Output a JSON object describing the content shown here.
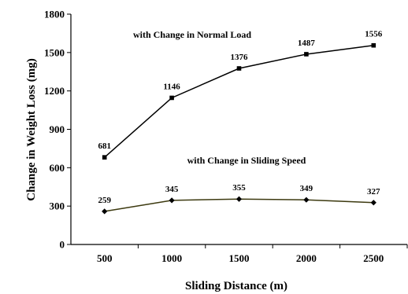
{
  "chart_data": {
    "type": "line",
    "title": "",
    "xlabel": "Sliding Distance (m)",
    "ylabel": "Change in Weight Loss (mg)",
    "x": [
      500,
      1000,
      1500,
      2000,
      2500
    ],
    "x_tick_labels": [
      "500",
      "1000",
      "1500",
      "2000",
      "2500"
    ],
    "ylim": [
      0,
      1800
    ],
    "y_ticks": [
      0,
      300,
      600,
      900,
      1200,
      1500,
      1800
    ],
    "y_tick_labels": [
      "0",
      "300",
      "600",
      "900",
      "1200",
      "1500",
      "1800"
    ],
    "grid": false,
    "legend": "none",
    "series": [
      {
        "name": "with Change in Normal Load",
        "values": [
          681,
          1146,
          1376,
          1487,
          1556
        ],
        "data_labels": [
          "681",
          "1146",
          "1376",
          "1487",
          "1556"
        ],
        "marker": "square",
        "color": "#000000"
      },
      {
        "name": "with Change in Sliding Speed",
        "values": [
          259,
          345,
          355,
          349,
          327
        ],
        "data_labels": [
          "259",
          "345",
          "355",
          "349",
          "327"
        ],
        "marker": "diamond",
        "color": "#3d3a10"
      }
    ]
  }
}
